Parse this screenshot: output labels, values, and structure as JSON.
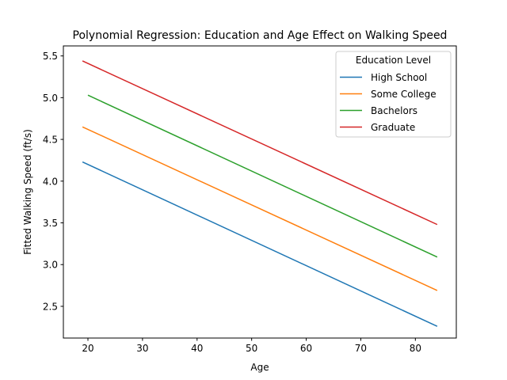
{
  "chart_data": {
    "type": "line",
    "title": "Polynomial Regression: Education and Age Effect on Walking Speed",
    "xlabel": "Age",
    "ylabel": "Fitted Walking Speed (ft/s)",
    "xlim": [
      15.5,
      87.5
    ],
    "ylim": [
      2.12,
      5.62
    ],
    "xticks": [
      20,
      30,
      40,
      50,
      60,
      70,
      80
    ],
    "yticks": [
      2.5,
      3.0,
      3.5,
      4.0,
      4.5,
      5.0,
      5.5
    ],
    "ytick_labels": [
      "2.5",
      "3.0",
      "3.5",
      "4.0",
      "4.5",
      "5.0",
      "5.5"
    ],
    "grid": false,
    "legend": {
      "title": "Education Level",
      "placement": "top-right"
    },
    "series": [
      {
        "name": "High School",
        "color": "#1f77b4",
        "x": [
          19,
          84
        ],
        "y": [
          4.23,
          2.26
        ]
      },
      {
        "name": "Some College",
        "color": "#ff7f0e",
        "x": [
          19,
          84
        ],
        "y": [
          4.65,
          2.69
        ]
      },
      {
        "name": "Bachelors",
        "color": "#2ca02c",
        "x": [
          20,
          84
        ],
        "y": [
          5.03,
          3.09
        ]
      },
      {
        "name": "Graduate",
        "color": "#d62728",
        "x": [
          19,
          84
        ],
        "y": [
          5.44,
          3.48
        ]
      }
    ]
  }
}
